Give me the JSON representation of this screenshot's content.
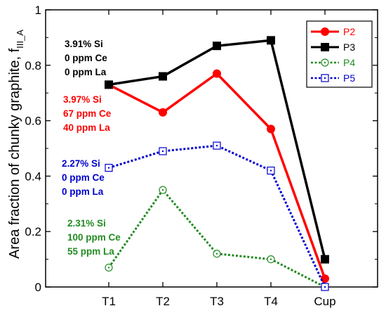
{
  "chart_data": {
    "type": "line",
    "categories": [
      "T1",
      "T2",
      "T3",
      "T4",
      "Cup"
    ],
    "ylabel": "Area fraction of chunky graphite, f",
    "ylabel_sub": "III_A",
    "ylim": [
      0,
      1
    ],
    "yticks": [
      "0",
      "0.2",
      "0.4",
      "0.6",
      "0.8",
      "1"
    ],
    "legend_position": "top-right",
    "grid": false,
    "series": [
      {
        "name": "P2",
        "color": "#ff0000",
        "style": "solid",
        "marker": "filled-circle",
        "values": [
          0.73,
          0.63,
          0.77,
          0.57,
          0.03
        ]
      },
      {
        "name": "P3",
        "color": "#000000",
        "style": "solid",
        "marker": "filled-square",
        "values": [
          0.73,
          0.76,
          0.87,
          0.89,
          0.1
        ]
      },
      {
        "name": "P4",
        "color": "#228b22",
        "style": "dotted",
        "marker": "open-circle-dot",
        "values": [
          0.07,
          0.35,
          0.12,
          0.1,
          0.0
        ]
      },
      {
        "name": "P5",
        "color": "#0000cc",
        "style": "dotted",
        "marker": "open-square-dot",
        "values": [
          0.43,
          0.49,
          0.51,
          0.42,
          0.0
        ]
      }
    ],
    "annotations": [
      {
        "series": "P3",
        "color": "#000000",
        "lines": [
          "3.91% Si",
          "0 ppm Ce",
          "0 ppm La"
        ]
      },
      {
        "series": "P2",
        "color": "#ff0000",
        "lines": [
          "3.97% Si",
          "67 ppm Ce",
          "40 ppm La"
        ]
      },
      {
        "series": "P5",
        "color": "#0000cc",
        "lines": [
          "2.27% Si",
          "0 ppm Ce",
          "0 ppm La"
        ]
      },
      {
        "series": "P4",
        "color": "#228b22",
        "lines": [
          "2.31% Si",
          "100 ppm Ce",
          "55 ppm La"
        ]
      }
    ]
  }
}
